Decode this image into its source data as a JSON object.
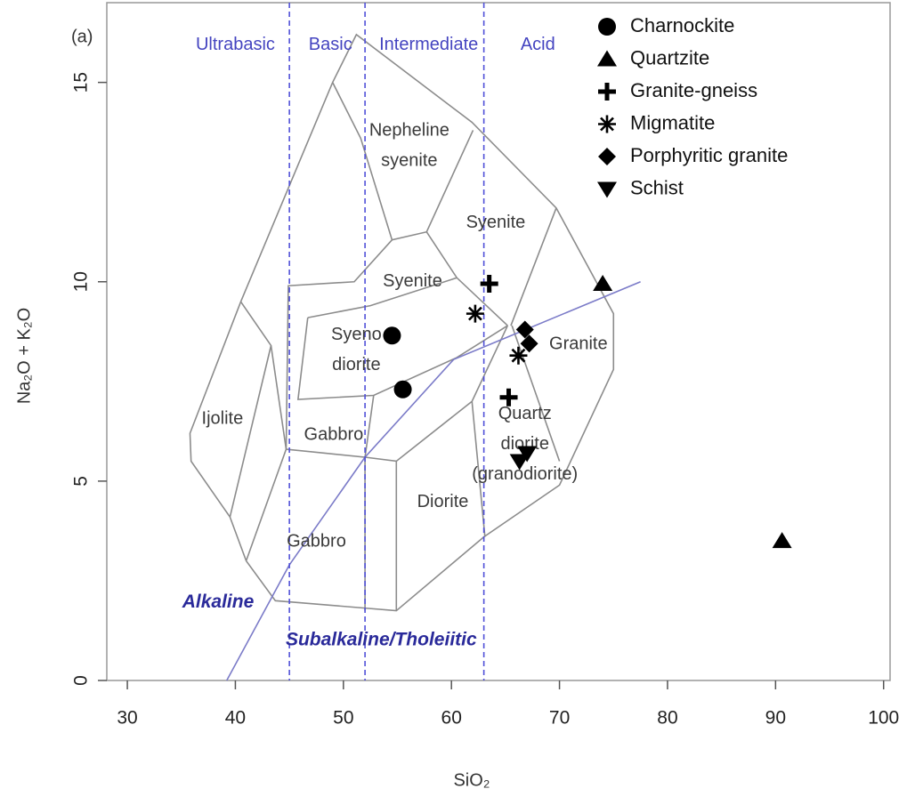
{
  "chart_data": {
    "type": "scatter",
    "panel_label": "(a)",
    "xlabel": "SiO₂",
    "ylabel": "Na₂O + K₂O",
    "xlim": [
      28.1,
      100.6
    ],
    "ylim": [
      0,
      17
    ],
    "xticks": [
      30,
      40,
      50,
      60,
      70,
      80,
      90,
      100
    ],
    "yticks": [
      0,
      5,
      10,
      15
    ],
    "legend": "top-right",
    "series": [
      {
        "name": "Charnockite",
        "color": "#000000",
        "marker": "circle",
        "x": [
          54.5,
          55.5
        ],
        "values": [
          8.65,
          7.3
        ]
      },
      {
        "name": "Quartzite",
        "color": "#000000",
        "marker": "triangle",
        "x": [
          74,
          90.6
        ],
        "values": [
          9.95,
          3.5
        ]
      },
      {
        "name": "Granite-gneiss",
        "color": "#000000",
        "marker": "plus",
        "x": [
          63.5,
          65.3
        ],
        "values": [
          9.95,
          7.1
        ]
      },
      {
        "name": "Migmatite",
        "color": "#000000",
        "marker": "asterisk",
        "x": [
          62.2,
          66.2
        ],
        "values": [
          9.2,
          8.15
        ]
      },
      {
        "name": "Porphyritic granite",
        "color": "#000000",
        "marker": "diamond",
        "x": [
          66.8,
          67.2
        ],
        "values": [
          8.8,
          8.45
        ]
      },
      {
        "name": "Schist",
        "color": "#000000",
        "marker": "triangle-down",
        "x": [
          66.3,
          67.0
        ],
        "values": [
          5.5,
          5.7
        ]
      }
    ],
    "field_color": "#8c8c8c",
    "field_lines": [
      {
        "x": [
          41,
          43.7,
          54.9,
          63,
          70,
          75,
          75,
          69.7,
          61.9,
          51.2,
          49,
          40.5,
          35.8,
          35.9,
          39.5,
          41
        ],
        "y": [
          3,
          2,
          1.75,
          3.6,
          4.9,
          7.8,
          9.2,
          11.85,
          14,
          16.2,
          15,
          9.5,
          6.2,
          5.5,
          4.1,
          3
        ]
      },
      {
        "x": [
          40.5,
          43.3,
          39.5
        ],
        "y": [
          9.5,
          8.4,
          4.1
        ]
      },
      {
        "x": [
          43.3,
          44.7,
          41
        ],
        "y": [
          8.4,
          5.8,
          3
        ]
      },
      {
        "x": [
          49,
          51.6,
          54.5,
          57.7,
          62
        ],
        "y": [
          15,
          13.6,
          11.05,
          11.25,
          13.8
        ]
      },
      {
        "x": [
          54.5,
          51,
          44.9,
          44.7
        ],
        "y": [
          11.05,
          10,
          9.9,
          5.8
        ]
      },
      {
        "x": [
          46.7,
          52.5,
          60.5
        ],
        "y": [
          9.1,
          9.4,
          10.1
        ]
      },
      {
        "x": [
          57.7,
          60.5,
          65.2
        ],
        "y": [
          11.25,
          10.1,
          8.9
        ]
      },
      {
        "x": [
          46.7,
          45.8,
          52.8,
          60.5,
          65.2
        ],
        "y": [
          9.1,
          7.05,
          7.15,
          8.1,
          8.9
        ]
      },
      {
        "x": [
          52.8,
          52,
          44.7
        ],
        "y": [
          7.15,
          5.6,
          5.8
        ]
      },
      {
        "x": [
          52,
          54.9,
          61.9,
          65.2
        ],
        "y": [
          5.6,
          5.5,
          7.0,
          8.9
        ]
      },
      {
        "x": [
          52,
          52
        ],
        "y": [
          5.6,
          1.75
        ]
      },
      {
        "x": [
          54.9,
          54.9
        ],
        "y": [
          5.5,
          1.75
        ]
      },
      {
        "x": [
          61.9,
          63.1
        ],
        "y": [
          7.0,
          3.6
        ]
      },
      {
        "x": [
          65.6,
          70
        ],
        "y": [
          8.9,
          5.5
        ]
      },
      {
        "x": [
          69.7,
          65.5
        ],
        "y": [
          11.85,
          8.9
        ]
      }
    ],
    "class_color": "#5050d8",
    "class_bounds": [
      45,
      52,
      63
    ],
    "classes": [
      {
        "text": "Ultrabasic",
        "x": 40.0,
        "y": 15.94
      },
      {
        "text": "Basic",
        "x": 48.8,
        "y": 15.94
      },
      {
        "text": "Intermediate",
        "x": 57.9,
        "y": 15.94
      },
      {
        "text": "Acid",
        "x": 68.0,
        "y": 15.94
      }
    ],
    "divider": {
      "color": "#7b7bc8",
      "x": [
        39.2,
        45,
        52,
        60.2,
        77.5
      ],
      "y": [
        0,
        2.9,
        5.6,
        8.05,
        10
      ]
    },
    "fields": [
      {
        "lines": [
          "Nepheline",
          "syenite"
        ],
        "x": 56.1,
        "y": 13.4
      },
      {
        "lines": [
          "Syenite"
        ],
        "x": 64.1,
        "y": 11.47
      },
      {
        "lines": [
          "Syenite"
        ],
        "x": 56.4,
        "y": 10.0
      },
      {
        "lines": [
          "Syeno",
          "diorite"
        ],
        "x": 51.2,
        "y": 8.28
      },
      {
        "lines": [
          "Granite"
        ],
        "x": 71.75,
        "y": 8.43
      },
      {
        "lines": [
          "Ijolite"
        ],
        "x": 38.8,
        "y": 6.55
      },
      {
        "lines": [
          "Gabbro"
        ],
        "x": 49.1,
        "y": 6.15
      },
      {
        "lines": [
          "Quartz",
          "diorite",
          "(granodiorite)"
        ],
        "x": 66.8,
        "y": 5.92
      },
      {
        "lines": [
          "Diorite"
        ],
        "x": 59.2,
        "y": 4.47
      },
      {
        "lines": [
          "Gabbro"
        ],
        "x": 47.5,
        "y": 3.47
      }
    ],
    "series_labels": [
      {
        "text": "Alkaline",
        "x": 38.4,
        "y": 1.95
      },
      {
        "text": "Subalkaline/Tholeiitic",
        "x": 53.5,
        "y": 1.0
      }
    ]
  }
}
